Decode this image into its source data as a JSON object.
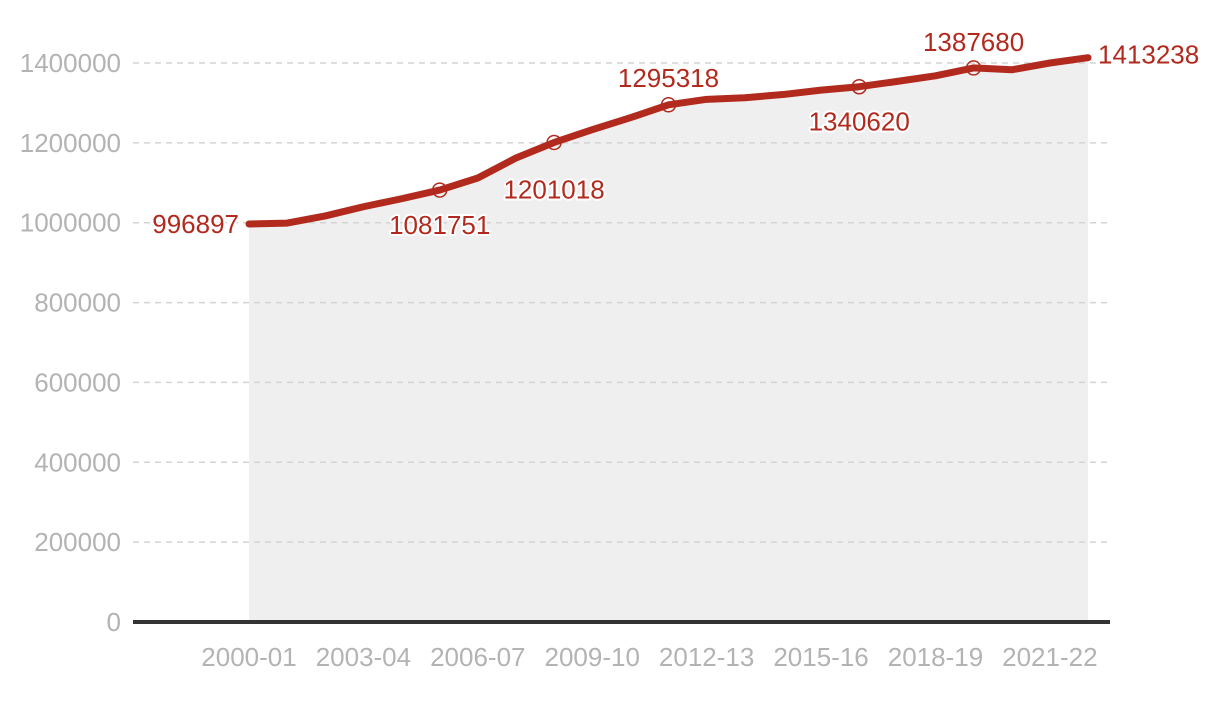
{
  "chart_data": {
    "type": "area",
    "title": "",
    "xlabel": "",
    "ylabel": "",
    "ylim": [
      0,
      1400000
    ],
    "yticks": [
      0,
      200000,
      400000,
      600000,
      800000,
      1000000,
      1200000,
      1400000
    ],
    "ytick_labels": [
      "0",
      "200000",
      "400000",
      "600000",
      "800000",
      "1000000",
      "1200000",
      "1400000"
    ],
    "x": [
      "2000-01",
      "2001-02",
      "2002-03",
      "2003-04",
      "2004-05",
      "2005-06",
      "2006-07",
      "2007-08",
      "2008-09",
      "2009-10",
      "2010-11",
      "2011-12",
      "2012-13",
      "2013-14",
      "2014-15",
      "2015-16",
      "2016-17",
      "2017-18",
      "2018-19",
      "2019-20",
      "2020-21",
      "2021-22",
      "2022-23"
    ],
    "xtick_labels": [
      "2000-01",
      "2003-04",
      "2006-07",
      "2009-10",
      "2012-13",
      "2015-16",
      "2018-19",
      "2021-22"
    ],
    "series": [
      {
        "values": [
          996897,
          999000,
          1017000,
          1040000,
          1060000,
          1081751,
          1112000,
          1162000,
          1201018,
          1233000,
          1263000,
          1295318,
          1309000,
          1313000,
          1321000,
          1332000,
          1340620,
          1354000,
          1368000,
          1387680,
          1383000,
          1400000,
          1413238
        ],
        "color": "#b22a1e"
      }
    ],
    "annotations": [
      {
        "x": "2000-01",
        "value": 996897,
        "label": "996897"
      },
      {
        "x": "2005-06",
        "value": 1081751,
        "label": "1081751"
      },
      {
        "x": "2008-09",
        "value": 1201018,
        "label": "1201018"
      },
      {
        "x": "2011-12",
        "value": 1295318,
        "label": "1295318"
      },
      {
        "x": "2016-17",
        "value": 1340620,
        "label": "1340620"
      },
      {
        "x": "2019-20",
        "value": 1387680,
        "label": "1387680"
      },
      {
        "x": "2022-23",
        "value": 1413238,
        "label": "1413238"
      }
    ],
    "grid": true,
    "legend": "none",
    "colors": {
      "line": "#b22a1e",
      "area": "#efefef",
      "grid": "#d4d4d4",
      "axis": "#333333",
      "tick_text": "#b3b3b3"
    }
  }
}
